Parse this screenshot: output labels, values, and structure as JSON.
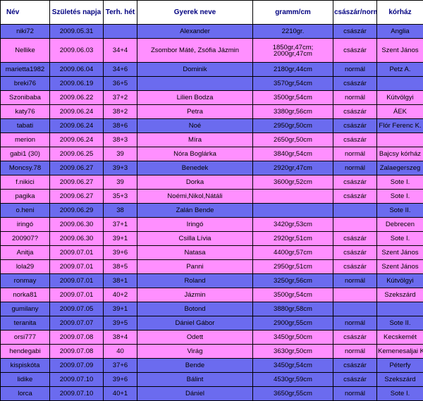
{
  "columns": [
    "Név",
    "Születés napja",
    "Terh. hét",
    "Gyerek neve",
    "gramm/cm",
    "császár/normál",
    "kórház"
  ],
  "row_colors": {
    "blue": "#6b6bef",
    "pink": "#ff8fff"
  },
  "rows": [
    {
      "nev": "niki72",
      "datum": "2009.05.31",
      "het": "",
      "gyerek": "Alexander",
      "meret": "2210gr.",
      "mod": "császár",
      "korhaz": "Anglia",
      "color": "blue"
    },
    {
      "nev": "Nellike",
      "datum": "2009.06.03",
      "het": "34+4",
      "gyerek": "Zsombor Máté, Zsófia Jázmin",
      "meret": "1850gr,47cm; 2000gr,47cm",
      "mod": "császár",
      "korhaz": "Szent János",
      "color": "pink"
    },
    {
      "nev": "marietta1982",
      "datum": "2009.06.04",
      "het": "34+6",
      "gyerek": "Dominik",
      "meret": "2180gr,44cm",
      "mod": "normál",
      "korhaz": "Petz A.",
      "color": "blue"
    },
    {
      "nev": "breki76",
      "datum": "2009.06.19",
      "het": "36+5",
      "gyerek": "",
      "meret": "3570gr,54cm",
      "mod": "császár",
      "korhaz": "",
      "color": "blue"
    },
    {
      "nev": "Szonibaba",
      "datum": "2009.06.22",
      "het": "37+2",
      "gyerek": "Lilien Bodza",
      "meret": "3500gr,54cm",
      "mod": "normál",
      "korhaz": "Kútvölgyi",
      "color": "pink"
    },
    {
      "nev": "katy76",
      "datum": "2009.06.24",
      "het": "38+2",
      "gyerek": "Petra",
      "meret": "3380gr,56cm",
      "mod": "császár",
      "korhaz": "ÁEK",
      "color": "pink"
    },
    {
      "nev": "tabati",
      "datum": "2009.06.24",
      "het": "38+6",
      "gyerek": "Noé",
      "meret": "2950gr,50cm",
      "mod": "császár",
      "korhaz": "Flór Ferenc K.",
      "color": "blue"
    },
    {
      "nev": "merion",
      "datum": "2009.06.24",
      "het": "38+3",
      "gyerek": "Míra",
      "meret": "2650gr,50cm",
      "mod": "császár",
      "korhaz": "",
      "color": "pink"
    },
    {
      "nev": "gabi1  (30)",
      "datum": "2009.06.25",
      "het": "39",
      "gyerek": "Nóra Boglárka",
      "meret": "3840gr,54cm",
      "mod": "normál",
      "korhaz": "Bajcsy kórház",
      "color": "pink"
    },
    {
      "nev": "Moncsy.78",
      "datum": "2009.06.27",
      "het": "39+3",
      "gyerek": "Benedek",
      "meret": "2920gr,47cm",
      "mod": "normál",
      "korhaz": "Zalaegerszeg",
      "color": "blue"
    },
    {
      "nev": "f.nikici",
      "datum": "2009.06.27",
      "het": "39",
      "gyerek": "Dorka",
      "meret": "3600gr,52cm",
      "mod": "császár",
      "korhaz": "Sote I.",
      "color": "pink"
    },
    {
      "nev": "pagika",
      "datum": "2009.06.27",
      "het": "35+3",
      "gyerek": "Noémi,Nikol,Nátáli",
      "meret": "",
      "mod": "császár",
      "korhaz": "Sote I.",
      "color": "pink"
    },
    {
      "nev": "o.heni",
      "datum": "2009.06.29",
      "het": "38",
      "gyerek": "Zalán Bende",
      "meret": "",
      "mod": "",
      "korhaz": "Sote II.",
      "color": "blue"
    },
    {
      "nev": "iringó",
      "datum": "2009.06.30",
      "het": "37+1",
      "gyerek": "Iringó",
      "meret": "3420gr,53cm",
      "mod": "",
      "korhaz": "Debrecen",
      "color": "pink"
    },
    {
      "nev": "200907?",
      "datum": "2009.06.30",
      "het": "39+1",
      "gyerek": "Csilla Lívia",
      "meret": "2920gr,51cm",
      "mod": "császár",
      "korhaz": "Sote I.",
      "color": "pink"
    },
    {
      "nev": "Anitja",
      "datum": "2009.07.01",
      "het": "39+6",
      "gyerek": "Natasa",
      "meret": "4400gr,57cm",
      "mod": "császár",
      "korhaz": "Szent János",
      "color": "pink"
    },
    {
      "nev": "lola29",
      "datum": "2009.07.01",
      "het": "38+5",
      "gyerek": "Panni",
      "meret": "2950gr,51cm",
      "mod": "császár",
      "korhaz": "Szent János",
      "color": "pink"
    },
    {
      "nev": "ronmay",
      "datum": "2009.07.01",
      "het": "38+1",
      "gyerek": "Roland",
      "meret": "3250gr,56cm",
      "mod": "normál",
      "korhaz": "Kútvölgyi",
      "color": "blue"
    },
    {
      "nev": "norka81",
      "datum": "2009.07.01",
      "het": "40+2",
      "gyerek": "Jázmin",
      "meret": "3500gr,54cm",
      "mod": "",
      "korhaz": "Szekszárd",
      "color": "pink"
    },
    {
      "nev": "gumilany",
      "datum": "2009.07.05",
      "het": "39+1",
      "gyerek": "Botond",
      "meret": "3880gr,58cm",
      "mod": "",
      "korhaz": "",
      "color": "blue"
    },
    {
      "nev": "teranita",
      "datum": "2009.07.07",
      "het": "39+5",
      "gyerek": "Dániel Gábor",
      "meret": "2900gr,55cm",
      "mod": "normál",
      "korhaz": "Sote II.",
      "color": "blue"
    },
    {
      "nev": "orsi777",
      "datum": "2009.07.08",
      "het": "38+4",
      "gyerek": "Odett",
      "meret": "3450gr,50cm",
      "mod": "császár",
      "korhaz": "Kecskemét",
      "color": "pink"
    },
    {
      "nev": "hendegabi",
      "datum": "2009.07.08",
      "het": "40",
      "gyerek": "Virág",
      "meret": "3630gr,50cm",
      "mod": "normál",
      "korhaz": "Kemenesaljai K",
      "color": "pink"
    },
    {
      "nev": "kispiskóta",
      "datum": "2009.07.09",
      "het": "37+6",
      "gyerek": "Bende",
      "meret": "3450gr,54cm",
      "mod": "császár",
      "korhaz": "Péterfy",
      "color": "blue"
    },
    {
      "nev": "lidike",
      "datum": "2009.07.10",
      "het": "39+6",
      "gyerek": "Bálint",
      "meret": "4530gr,59cm",
      "mod": "császár",
      "korhaz": "Szekszárd",
      "color": "blue"
    },
    {
      "nev": "lorca",
      "datum": "2009.07.10",
      "het": "40+1",
      "gyerek": "Dániel",
      "meret": "3650gr,55cm",
      "mod": "normál",
      "korhaz": "Sote I.",
      "color": "blue"
    }
  ]
}
